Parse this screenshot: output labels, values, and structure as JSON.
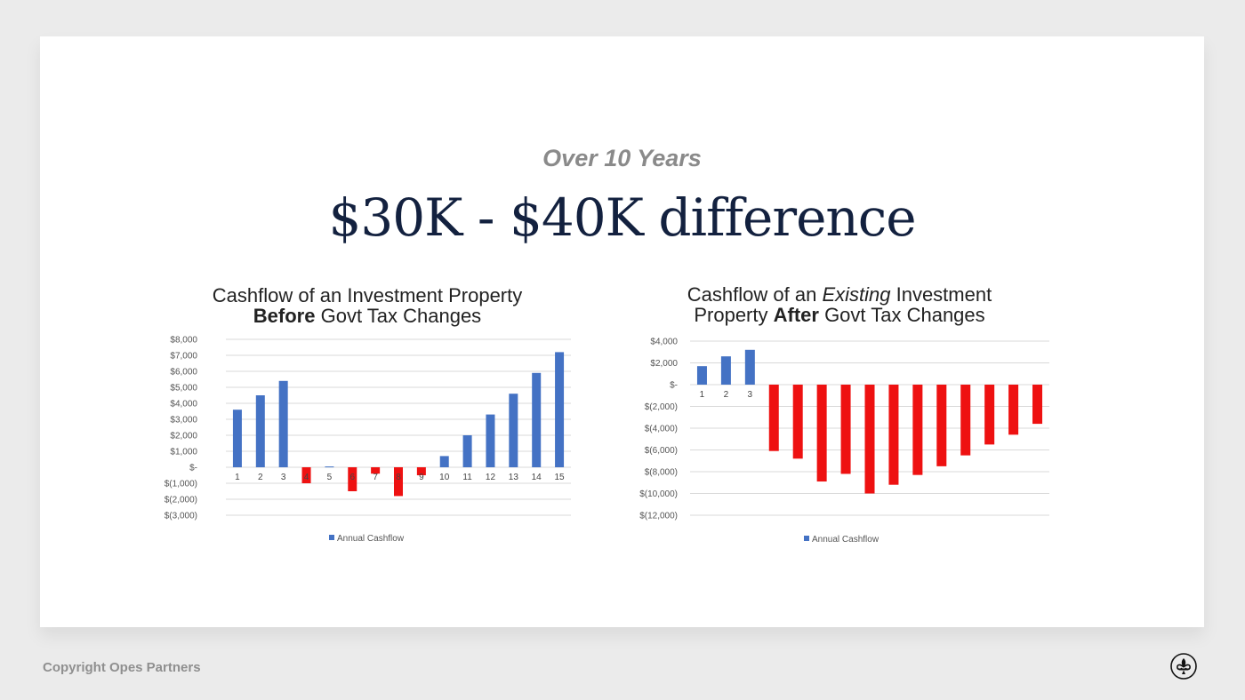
{
  "slide": {
    "subtitle": "Over 10 Years",
    "headline": "$30K - $40K difference"
  },
  "footer": {
    "copyright": "Copyright Opes Partners",
    "logo_icon": "fleur-de-lis-icon"
  },
  "colors": {
    "positive": "#4472c4",
    "negative": "#ee1111",
    "headline": "#13213f",
    "subtitle": "#8a8a8a"
  },
  "chart_data": [
    {
      "type": "bar",
      "title_parts": [
        {
          "text": "Cashflow of an Investment Property",
          "style": "normal"
        },
        {
          "text": "Before",
          "style": "bold"
        },
        {
          "text": " Govt Tax Changes",
          "style": "normal"
        }
      ],
      "categories": [
        "1",
        "2",
        "3",
        "4",
        "5",
        "6",
        "7",
        "8",
        "9",
        "10",
        "11",
        "12",
        "13",
        "14",
        "15"
      ],
      "series": [
        {
          "name": "Annual Cashflow",
          "values": [
            3600,
            4500,
            5400,
            -1000,
            50,
            -1500,
            -400,
            -1800,
            -500,
            700,
            2000,
            3300,
            4600,
            5900,
            7200
          ]
        }
      ],
      "ylim": [
        -3000,
        8000
      ],
      "yticks": [
        {
          "value": 8000,
          "label": "$8,000"
        },
        {
          "value": 7000,
          "label": "$7,000"
        },
        {
          "value": 6000,
          "label": "$6,000"
        },
        {
          "value": 5000,
          "label": "$5,000"
        },
        {
          "value": 4000,
          "label": "$4,000"
        },
        {
          "value": 3000,
          "label": "$3,000"
        },
        {
          "value": 2000,
          "label": "$2,000"
        },
        {
          "value": 1000,
          "label": "$1,000"
        },
        {
          "value": 0,
          "label": "$-"
        },
        {
          "value": -1000,
          "label": "$(1,000)"
        },
        {
          "value": -2000,
          "label": "$(2,000)"
        },
        {
          "value": -3000,
          "label": "$(3,000)"
        }
      ],
      "grid": true,
      "legend": "bottom",
      "legend_label": "Annual Cashflow"
    },
    {
      "type": "bar",
      "title_parts": [
        {
          "text": "Cashflow of an ",
          "style": "normal"
        },
        {
          "text": "Existing",
          "style": "italic"
        },
        {
          "text": " Investment",
          "style": "normal"
        },
        {
          "text": "Property ",
          "style": "normal"
        },
        {
          "text": "After",
          "style": "bold"
        },
        {
          "text": " Govt Tax Changes",
          "style": "normal"
        }
      ],
      "categories": [
        "1",
        "2",
        "3",
        "",
        "",
        "",
        "",
        "",
        "",
        "",
        "",
        "",
        "",
        "",
        ""
      ],
      "series": [
        {
          "name": "Annual Cashflow",
          "values": [
            1700,
            2600,
            3200,
            -6100,
            -6800,
            -8900,
            -8200,
            -10000,
            -9200,
            -8300,
            -7500,
            -6500,
            -5500,
            -4600,
            -3600
          ]
        }
      ],
      "ylim": [
        -12000,
        4000
      ],
      "yticks": [
        {
          "value": 4000,
          "label": "$4,000"
        },
        {
          "value": 2000,
          "label": "$2,000"
        },
        {
          "value": 0,
          "label": "$-"
        },
        {
          "value": -2000,
          "label": "$(2,000)"
        },
        {
          "value": -4000,
          "label": "$(4,000)"
        },
        {
          "value": -6000,
          "label": "$(6,000)"
        },
        {
          "value": -8000,
          "label": "$(8,000)"
        },
        {
          "value": -10000,
          "label": "$(10,000)"
        },
        {
          "value": -12000,
          "label": "$(12,000)"
        }
      ],
      "grid": true,
      "legend": "bottom",
      "legend_label": "Annual Cashflow"
    }
  ]
}
